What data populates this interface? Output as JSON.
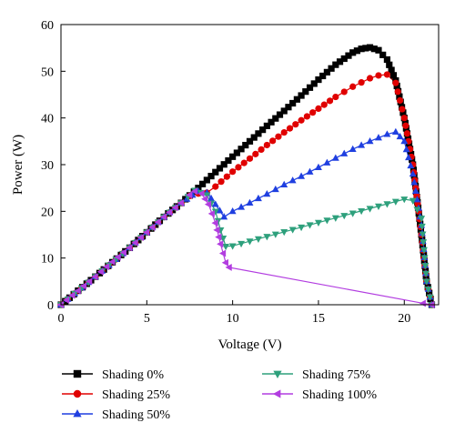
{
  "chart_data": {
    "type": "line",
    "xlabel": "Voltage (V)",
    "ylabel": "Power (W)",
    "xlim": [
      0,
      22
    ],
    "ylim": [
      0,
      60
    ],
    "xticks": [
      0,
      5,
      10,
      15,
      20
    ],
    "yticks": [
      0,
      10,
      20,
      30,
      40,
      50,
      60
    ],
    "grid": false,
    "legend_position": "bottom",
    "series": [
      {
        "name": "Shading 0%",
        "color": "#000000",
        "marker": "square",
        "x": [
          0,
          2,
          4,
          6,
          7,
          8,
          9,
          10,
          11,
          12,
          13,
          14,
          15,
          16,
          17,
          17.5,
          18,
          18.5,
          19,
          19.5,
          20,
          20.5,
          21,
          21.3,
          21.6
        ],
        "y": [
          0,
          6,
          12.2,
          18.8,
          21.8,
          25,
          28.4,
          31.7,
          35,
          38.3,
          41.5,
          44.8,
          48.2,
          51.4,
          54,
          54.8,
          55.1,
          54.5,
          52.5,
          48,
          40,
          30,
          15,
          5,
          0
        ]
      },
      {
        "name": "Shading 25%",
        "color": "#e00000",
        "marker": "circle",
        "x": [
          0,
          2,
          4,
          6,
          7,
          7.5,
          8,
          8.5,
          9,
          10,
          11,
          12,
          13,
          14,
          15,
          16,
          17,
          18,
          18.5,
          19,
          19.5,
          20,
          20.5,
          21,
          21.3,
          21.6
        ],
        "y": [
          0,
          6,
          12.2,
          18.8,
          21.8,
          23.3,
          23.8,
          24,
          25.3,
          28.5,
          31.3,
          34.2,
          36.9,
          39.5,
          42,
          44.5,
          46.7,
          48.5,
          49.1,
          49.3,
          47.5,
          40,
          30,
          15,
          5,
          0
        ]
      },
      {
        "name": "Shading 50%",
        "color": "#1f3fe0",
        "marker": "triangle-up",
        "x": [
          0,
          2,
          4,
          6,
          7,
          8,
          8.5,
          9,
          9.5,
          10,
          11,
          12,
          13,
          14,
          15,
          16,
          17,
          18,
          19,
          19.5,
          20,
          20.5,
          21,
          21.3,
          21.6
        ],
        "y": [
          0,
          6,
          12.2,
          18.8,
          21.8,
          24.3,
          24,
          21.5,
          18.8,
          20,
          21.8,
          23.7,
          25.7,
          27.5,
          29.4,
          31.4,
          33.3,
          35,
          36.5,
          37,
          35,
          28,
          17,
          5,
          0
        ]
      },
      {
        "name": "Shading 75%",
        "color": "#2ea07c",
        "marker": "triangle-down",
        "x": [
          0,
          2,
          4,
          6,
          7,
          7.8,
          8.5,
          9,
          9.3,
          9.6,
          10,
          11,
          12,
          13,
          14,
          15,
          16,
          17,
          18,
          19,
          20,
          20.5,
          21,
          21.3,
          21.6
        ],
        "y": [
          0,
          6,
          12.2,
          18.8,
          21.8,
          24.5,
          23.5,
          20,
          16,
          12.5,
          12.6,
          13.6,
          14.6,
          15.6,
          16.6,
          17.6,
          18.6,
          19.6,
          20.6,
          21.6,
          22.6,
          22.3,
          18.5,
          5,
          0
        ]
      },
      {
        "name": "Shading 100%",
        "color": "#b23de0",
        "marker": "triangle-left",
        "x": [
          0,
          1,
          2,
          3,
          4,
          5,
          6,
          7,
          7.5,
          7.8,
          8.2,
          8.6,
          9,
          9.3,
          9.6,
          9.8,
          21.1,
          21.6
        ],
        "y": [
          0,
          3,
          6,
          9.2,
          12.2,
          15.5,
          18.8,
          21.8,
          23.5,
          24.3,
          23.8,
          21.5,
          17.5,
          13,
          9,
          8,
          0.3,
          0
        ]
      }
    ]
  }
}
